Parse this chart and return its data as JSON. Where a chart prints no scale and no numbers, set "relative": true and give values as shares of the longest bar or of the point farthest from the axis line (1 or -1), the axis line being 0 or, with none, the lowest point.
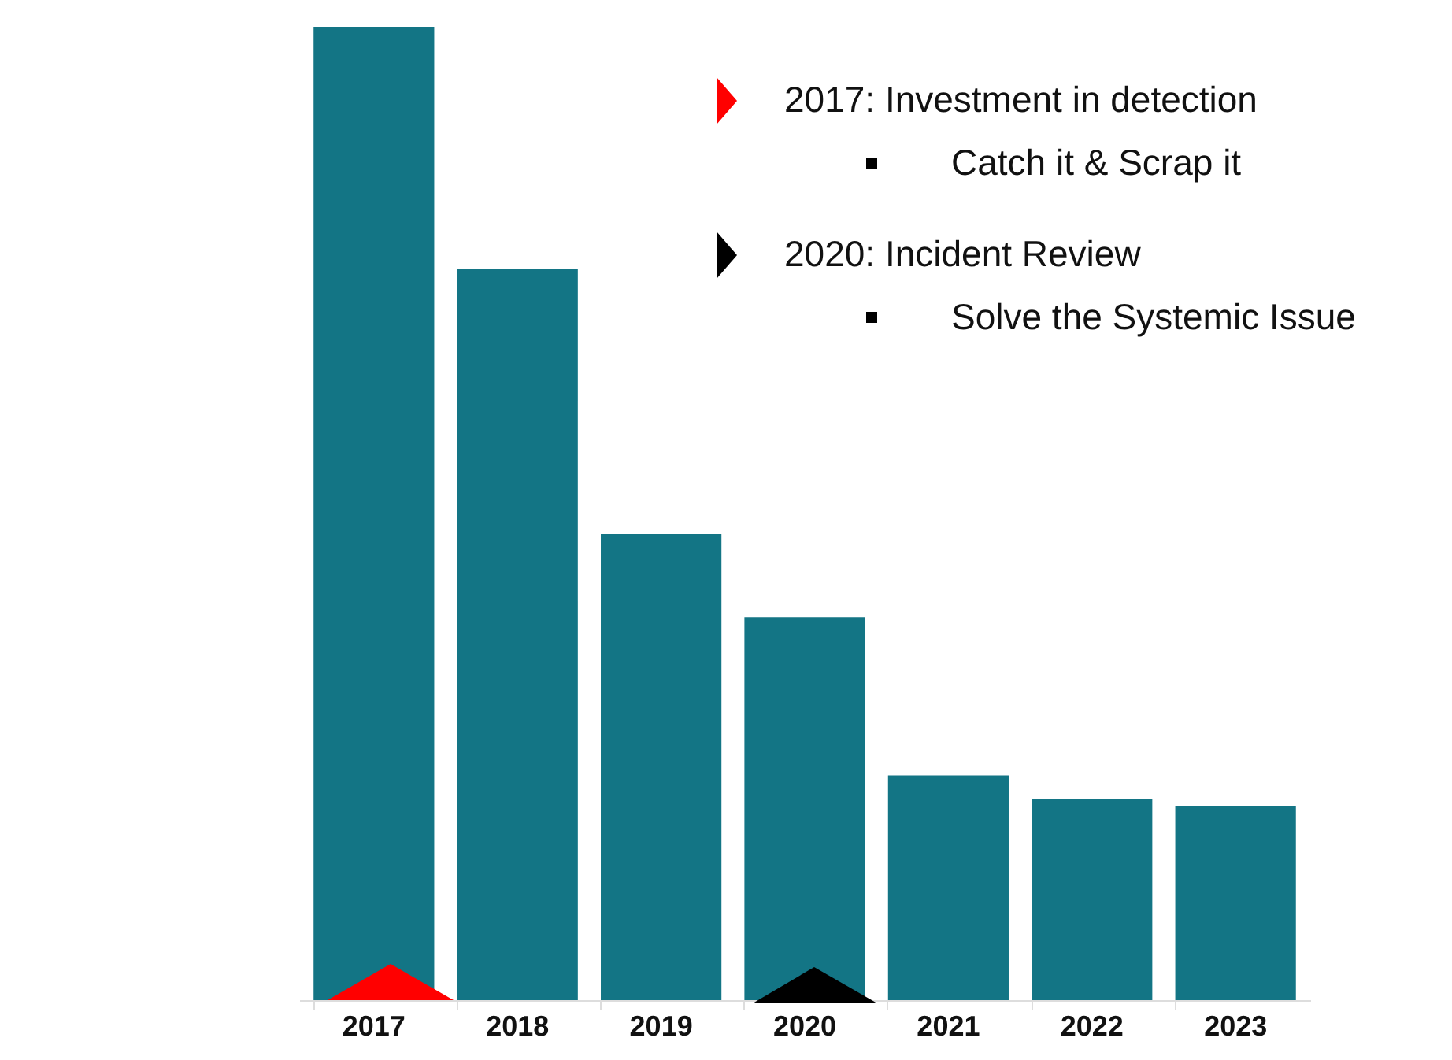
{
  "chart_data": {
    "type": "bar",
    "relative": true,
    "categories": [
      "2017",
      "2018",
      "2019",
      "2020",
      "2021",
      "2022",
      "2023"
    ],
    "values": [
      1,
      0.751,
      0.479,
      0.393,
      0.231,
      0.207,
      0.199
    ],
    "color": "#137585",
    "annotations": [
      "2017: Investment in detection",
      "Catch it & Scrap it",
      "2020: Incident Review",
      "Solve the Systemic Issue"
    ]
  }
}
